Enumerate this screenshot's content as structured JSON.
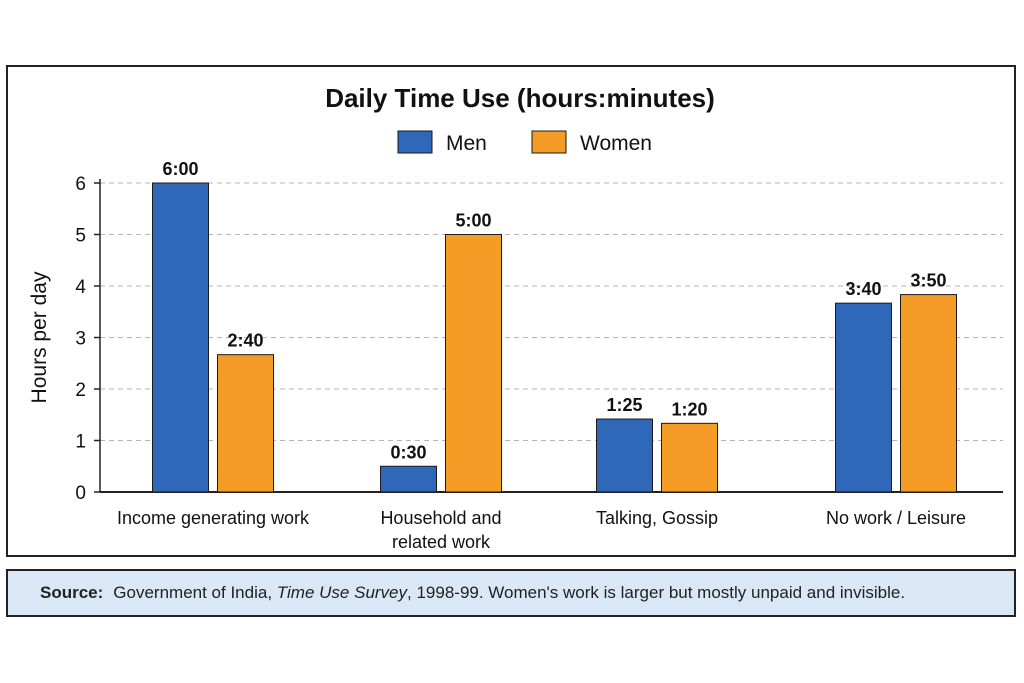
{
  "chart_data": {
    "type": "bar",
    "title": "Daily Time Use (hours:minutes)",
    "ylabel": "Hours per day",
    "xlabel": "",
    "ylim": [
      0,
      6
    ],
    "yticks": [
      0,
      1,
      2,
      3,
      4,
      5,
      6
    ],
    "grid": true,
    "legend_position": "top-center",
    "categories": [
      [
        "Income generating work"
      ],
      [
        "Household and",
        "related work"
      ],
      [
        "Talking, Gossip"
      ],
      [
        "No work / Leisure"
      ]
    ],
    "series": [
      {
        "name": "Men",
        "color": "#2f67b9",
        "values": [
          6.0,
          0.5,
          1.4167,
          3.6667
        ],
        "labels": [
          "6:00",
          "0:30",
          "1:25",
          "3:40"
        ]
      },
      {
        "name": "Women",
        "color": "#f59c27",
        "values": [
          2.6667,
          5.0,
          1.3333,
          3.8333
        ],
        "labels": [
          "2:40",
          "5:00",
          "1:20",
          "3:50"
        ]
      }
    ]
  },
  "source": {
    "label": "Source:",
    "text_before": "Government of India,",
    "title_italic": "Time Use Survey",
    "text_after": ", 1998-99. Women's work is larger but mostly unpaid and invisible."
  }
}
